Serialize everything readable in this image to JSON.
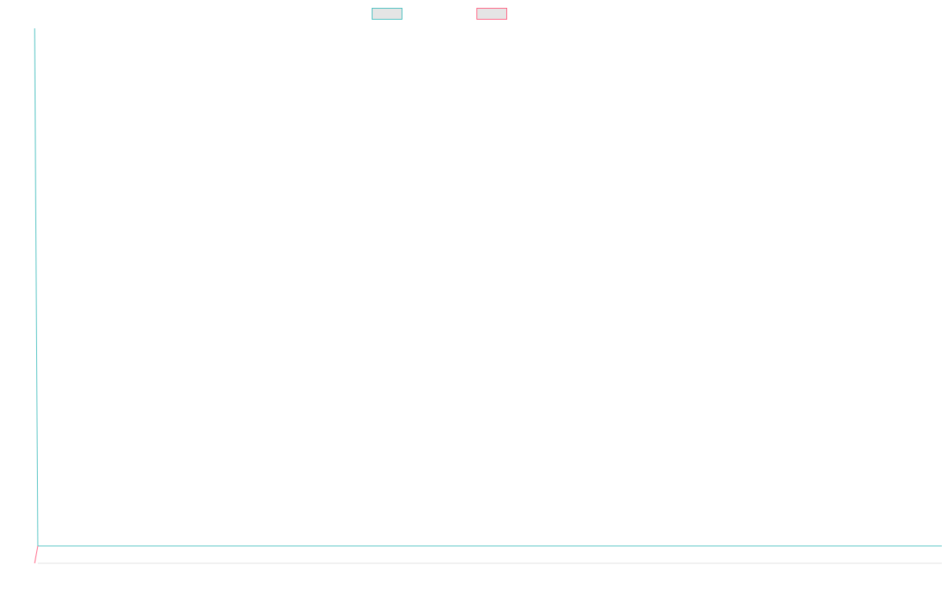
{
  "chart_data": {
    "type": "line",
    "title": "",
    "xlabel": "",
    "ylabel": "",
    "categories": [],
    "legend_position": "top-center",
    "grid": false,
    "series": [
      {
        "color": "#4bc0c0",
        "values": []
      },
      {
        "color": "#ff6384",
        "values": []
      }
    ]
  }
}
